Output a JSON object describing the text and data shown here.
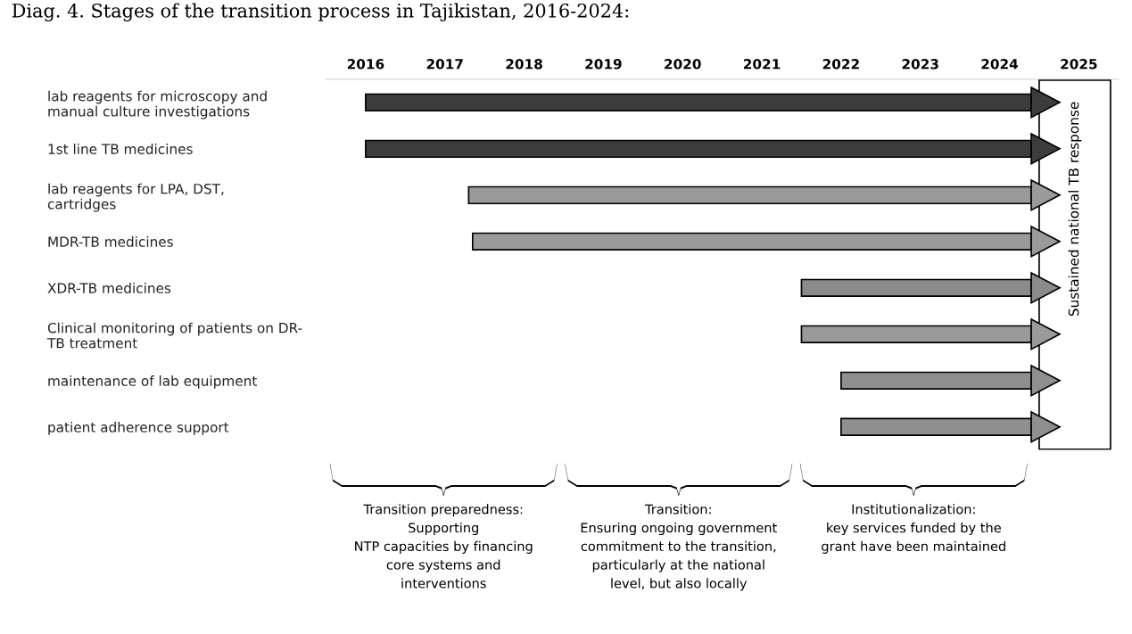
{
  "chart_data": {
    "type": "bar",
    "orientation": "horizontal",
    "title": "Diag. 4. Stages of the transition process in Tajikistan, 2016-2024:",
    "categories": [
      "lab reagents for microscopy and\nmanual culture investigations",
      "1st line TB medicines",
      "lab reagents for LPA, DST,\ncartridges",
      "MDR-TB medicines",
      "XDR-TB medicines",
      "Clinical monitoring of patients on DR-\nTB treatment",
      "maintenance of lab equipment",
      "patient adherence support"
    ],
    "base": [
      2016,
      2016,
      2017.3,
      2017.35,
      2021.5,
      2021.5,
      2022,
      2022
    ],
    "values": [
      8.4,
      8.4,
      7.1,
      7.05,
      2.9,
      2.9,
      2.4,
      2.4
    ],
    "colors": [
      "#3c3c3c",
      "#3c3c3c",
      "#9a9a9a",
      "#9a9a9a",
      "#8a8a8a",
      "#9a9a9a",
      "#8f8f8f",
      "#8f8f8f"
    ],
    "xlim": [
      2015.5,
      2025.5
    ],
    "xticks": [
      2016,
      2017,
      2018,
      2019,
      2020,
      2021,
      2022,
      2023,
      2024,
      2025
    ],
    "bands": [
      {
        "axis": "x",
        "from": 2024.5,
        "to": 2025.4,
        "label": "Sustained national TB response",
        "color": "#ffffff"
      }
    ],
    "annotations": [
      "Transition preparedness:\nSupporting\nNTP capacities by financing\ncore systems and\ninterventions",
      "Transition:\nEnsuring ongoing government\ncommitment to the transition,\nparticularly at the national\nlevel, but also locally",
      "Institutionalization:\nkey services funded by the\ngrant have been maintained"
    ],
    "grid": false,
    "legend": false
  }
}
